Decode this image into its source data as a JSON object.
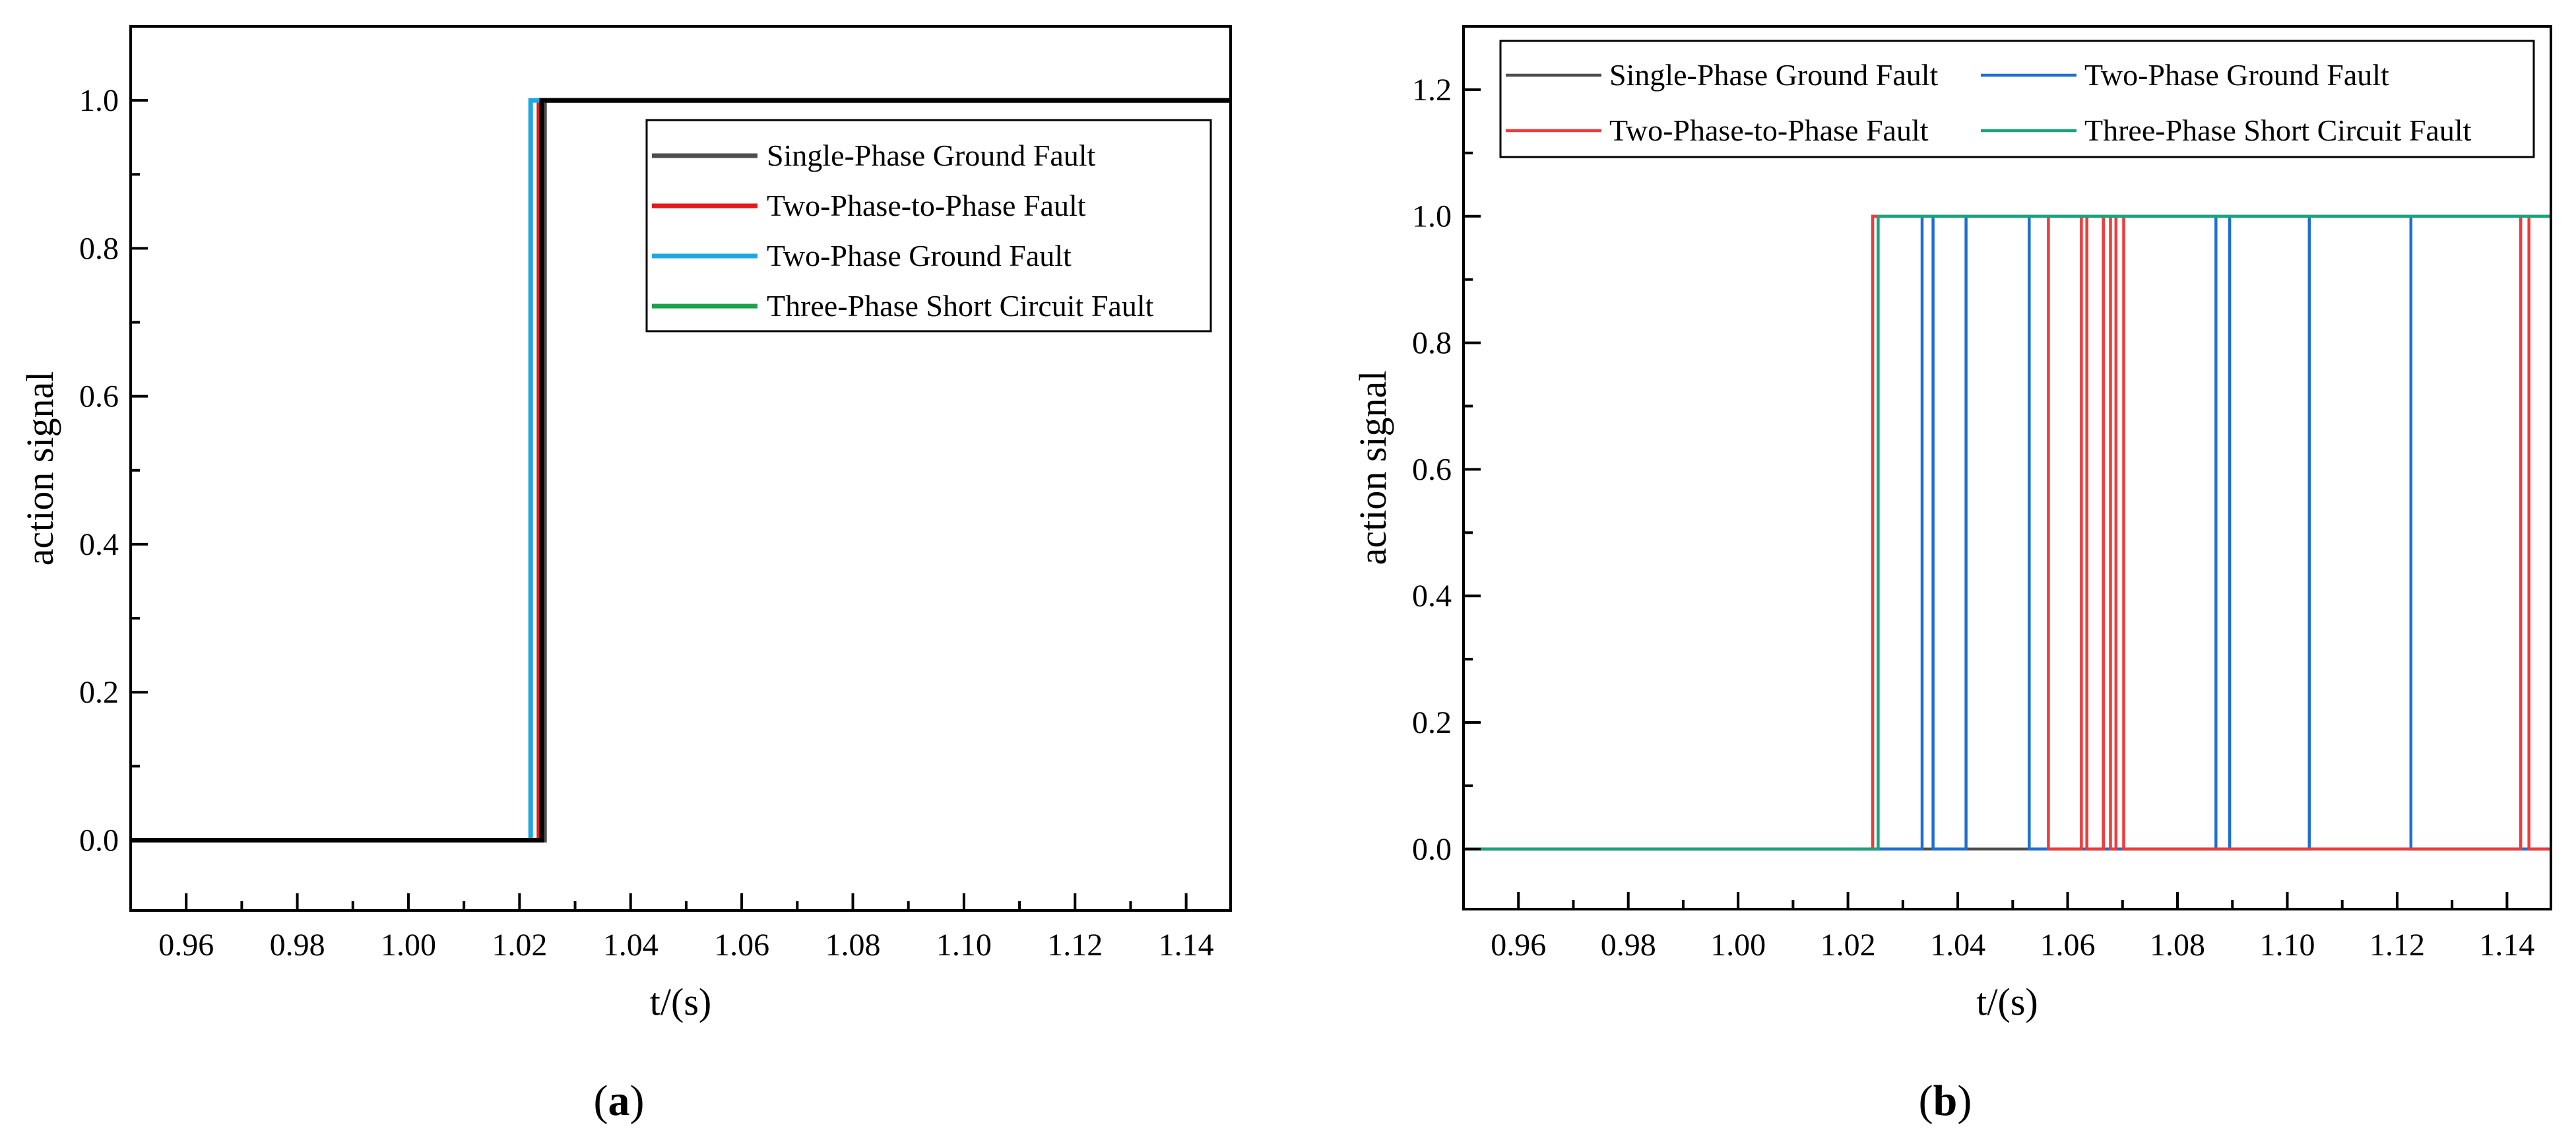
{
  "chart_data": [
    {
      "type": "line",
      "step": true,
      "panel_label": "a",
      "xlabel": "t/(s)",
      "ylabel": "action signal",
      "xlim": [
        0.95,
        1.148
      ],
      "ylim": [
        -0.095,
        1.1
      ],
      "xticks": [
        "0.96",
        "0.98",
        "1.00",
        "1.02",
        "1.04",
        "1.06",
        "1.08",
        "1.10",
        "1.12",
        "1.14"
      ],
      "yticks": [
        "0.0",
        "0.2",
        "0.4",
        "0.6",
        "0.8",
        "1.0"
      ],
      "grid": false,
      "legend_position": "top-right",
      "colors": {
        "single": "#4d4d4d",
        "two_phase_to_phase": "#e31a1c",
        "two_phase_ground": "#1fa8e0",
        "three_phase": "#1aa34a"
      },
      "series": [
        {
          "name": "Single-Phase Ground Fault",
          "color": "#4d4d4d",
          "points": [
            [
              0.95,
              0
            ],
            [
              1.0245,
              0
            ],
            [
              1.0245,
              1
            ],
            [
              1.148,
              1
            ]
          ]
        },
        {
          "name": "Two-Phase-to-Phase Fault",
          "color": "#e31a1c",
          "points": [
            [
              0.95,
              0
            ],
            [
              1.0235,
              0
            ],
            [
              1.0235,
              1
            ],
            [
              1.148,
              1
            ]
          ]
        },
        {
          "name": "Two-Phase Ground Fault",
          "color": "#1fa8e0",
          "points": [
            [
              0.95,
              0
            ],
            [
              1.022,
              0
            ],
            [
              1.022,
              1
            ],
            [
              1.148,
              1
            ]
          ]
        },
        {
          "name": "Three-Phase Short Circuit Fault",
          "color": "#1aa34a",
          "points": [
            [
              0.95,
              0
            ],
            [
              1.024,
              0
            ],
            [
              1.024,
              1
            ],
            [
              1.148,
              1
            ]
          ]
        }
      ],
      "overlay": {
        "color": "#000000",
        "points": [
          [
            0.95,
            0
          ],
          [
            1.024,
            0
          ],
          [
            1.024,
            1
          ],
          [
            1.148,
            1
          ]
        ]
      }
    },
    {
      "type": "line",
      "step": true,
      "panel_label": "b",
      "xlabel": "t/(s)",
      "ylabel": "action signal",
      "xlim": [
        0.95,
        1.148
      ],
      "ylim": [
        -0.095,
        1.3
      ],
      "xticks": [
        "0.96",
        "0.98",
        "1.00",
        "1.02",
        "1.04",
        "1.06",
        "1.08",
        "1.10",
        "1.12",
        "1.14"
      ],
      "yticks": [
        "0.0",
        "0.2",
        "0.4",
        "0.6",
        "0.8",
        "1.0",
        "1.2"
      ],
      "grid": false,
      "legend_position": "top",
      "series": [
        {
          "name": "Single-Phase Ground Fault",
          "color": "#4d4d4d",
          "points": [
            [
              0.95,
              0
            ],
            [
              1.148,
              0
            ]
          ]
        },
        {
          "name": "Two-Phase Ground Fault",
          "color": "#1f6fd1",
          "points": [
            [
              0.95,
              0
            ],
            [
              1.0335,
              0
            ],
            [
              1.0335,
              1
            ],
            [
              1.0355,
              1
            ],
            [
              1.0355,
              0
            ],
            [
              1.0415,
              0
            ],
            [
              1.0415,
              1
            ],
            [
              1.053,
              1
            ],
            [
              1.053,
              0
            ],
            [
              1.087,
              0
            ],
            [
              1.087,
              1
            ],
            [
              1.0895,
              1
            ],
            [
              1.0895,
              0
            ],
            [
              1.104,
              0
            ],
            [
              1.104,
              1
            ],
            [
              1.1225,
              1
            ],
            [
              1.1225,
              0
            ],
            [
              1.148,
              0
            ]
          ]
        },
        {
          "name": "Two-Phase-to-Phase Fault",
          "color": "#ee3b3b",
          "points": [
            [
              0.95,
              0
            ],
            [
              1.0245,
              0
            ],
            [
              1.0245,
              1
            ],
            [
              1.0565,
              1
            ],
            [
              1.0565,
              0
            ],
            [
              1.0625,
              0
            ],
            [
              1.0625,
              1
            ],
            [
              1.0635,
              1
            ],
            [
              1.0635,
              0
            ],
            [
              1.0665,
              0
            ],
            [
              1.0665,
              1
            ],
            [
              1.0678,
              1
            ],
            [
              1.0678,
              0
            ],
            [
              1.0688,
              0
            ],
            [
              1.0688,
              1
            ],
            [
              1.0702,
              1
            ],
            [
              1.0702,
              0
            ],
            [
              1.1425,
              0
            ],
            [
              1.1425,
              1
            ],
            [
              1.144,
              1
            ],
            [
              1.144,
              0
            ],
            [
              1.148,
              0
            ]
          ]
        },
        {
          "name": "Three-Phase Short Circuit Fault",
          "color": "#1aa37a",
          "points": [
            [
              0.95,
              0
            ],
            [
              1.0255,
              0
            ],
            [
              1.0255,
              1
            ],
            [
              1.148,
              1
            ]
          ]
        }
      ]
    }
  ]
}
